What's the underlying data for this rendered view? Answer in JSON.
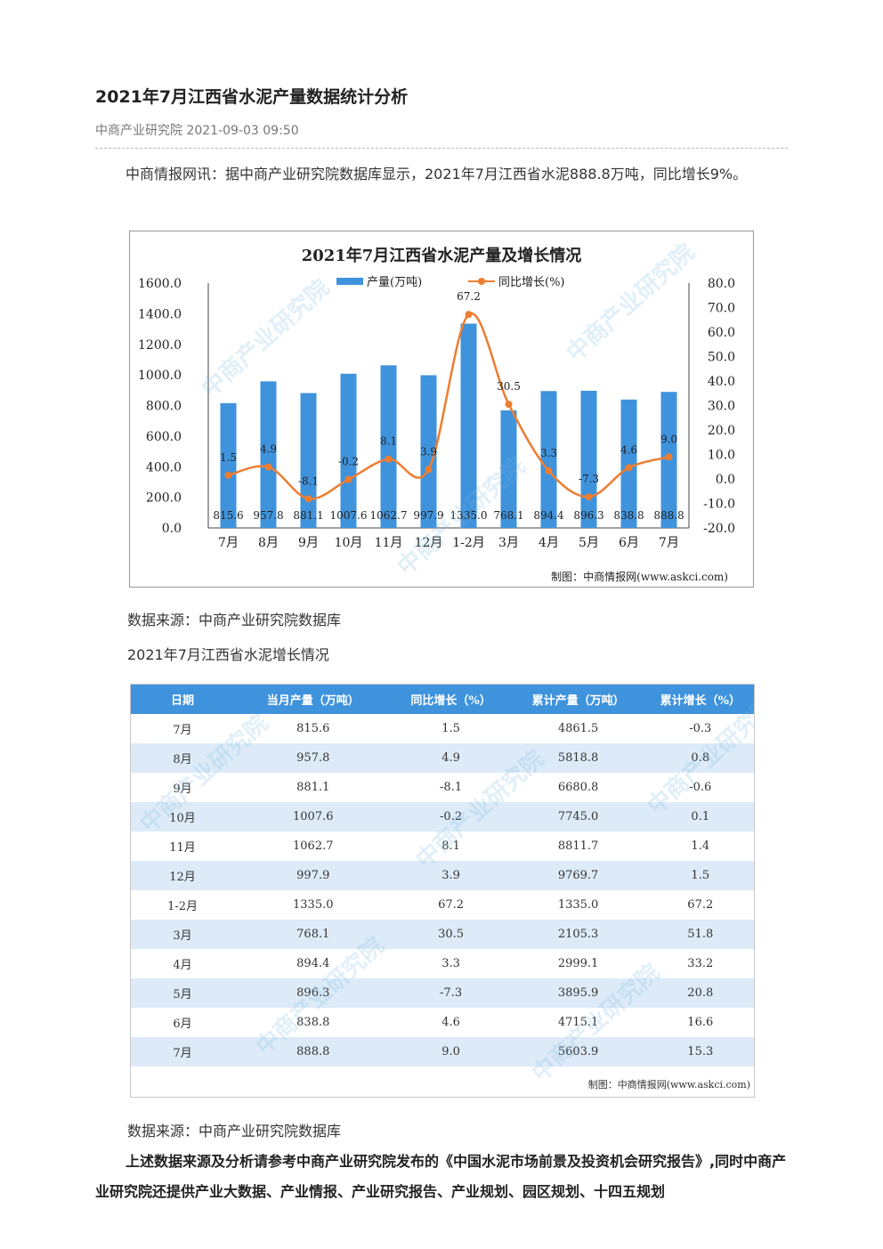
{
  "article": {
    "title": "2021年7月江西省水泥产量数据统计分析",
    "source_date": "中商产业研究院 2021-09-03 09:50",
    "intro": "中商情报网讯：据中商产业研究院数据库显示，2021年7月江西省水泥888.8万吨，同比增长9%。",
    "caption_source_1": "数据来源：中商产业研究院数据库",
    "table_title": "2021年7月江西省水泥增长情况",
    "caption_source_2": "数据来源：中商产业研究院数据库",
    "closing": "上述数据来源及分析请参考中商产业研究院发布的《中国水泥市场前景及投资机会研究报告》,同时中商产业研究院还提供产业大数据、产业情报、产业研究报告、产业规划、园区规划、十四五规划"
  },
  "chart_data": {
    "type": "bar+line",
    "title": "2021年7月江西省水泥产量及增长情况",
    "categories": [
      "7月",
      "8月",
      "9月",
      "10月",
      "11月",
      "12月",
      "1-2月",
      "3月",
      "4月",
      "5月",
      "6月",
      "7月"
    ],
    "series": [
      {
        "name": "产量(万吨)",
        "type": "bar",
        "axis": "left",
        "color": "#3f93dd",
        "values": [
          815.6,
          957.8,
          881.1,
          1007.6,
          1062.7,
          997.9,
          1335.0,
          768.1,
          894.4,
          896.3,
          838.8,
          888.8
        ],
        "labels": [
          "815.6",
          "957.8",
          "881.1",
          "1007.6",
          "1062.7",
          "997.9",
          "1335.0",
          "768.1",
          "894.4",
          "896.3",
          "838.8",
          "888.8"
        ]
      },
      {
        "name": "同比增长(%)",
        "type": "line",
        "axis": "right",
        "color": "#ed7d31",
        "values": [
          1.5,
          4.9,
          -8.1,
          -0.2,
          8.1,
          3.9,
          67.2,
          30.5,
          3.3,
          -7.3,
          4.6,
          9.0
        ],
        "labels": [
          "1.5",
          "4.9",
          "-8.1",
          "-0.2",
          "8.1",
          "3.9",
          "67.2",
          "30.5",
          "3.3",
          "-7.3",
          "4.6",
          "9.0"
        ]
      }
    ],
    "y_left_ticks": [
      "1600.0",
      "1400.0",
      "1200.0",
      "1000.0",
      "800.0",
      "600.0",
      "400.0",
      "200.0",
      "0.0"
    ],
    "y_left_range": [
      0,
      1600
    ],
    "y_right_ticks": [
      "80.0",
      "70.0",
      "60.0",
      "50.0",
      "40.0",
      "30.0",
      "20.0",
      "10.0",
      "0.0",
      "-10.0",
      "-20.0"
    ],
    "y_right_range": [
      -20,
      80
    ],
    "legend_position": "top",
    "credit": "制图：中商情报网(www.askci.com)"
  },
  "table": {
    "headers": [
      "日期",
      "当月产量（万吨）",
      "同比增长（%）",
      "累计产量（万吨）",
      "累计增长（%）"
    ],
    "rows": [
      [
        "7月",
        "815.6",
        "1.5",
        "4861.5",
        "-0.3"
      ],
      [
        "8月",
        "957.8",
        "4.9",
        "5818.8",
        "0.8"
      ],
      [
        "9月",
        "881.1",
        "-8.1",
        "6680.8",
        "-0.6"
      ],
      [
        "10月",
        "1007.6",
        "-0.2",
        "7745.0",
        "0.1"
      ],
      [
        "11月",
        "1062.7",
        "8.1",
        "8811.7",
        "1.4"
      ],
      [
        "12月",
        "997.9",
        "3.9",
        "9769.7",
        "1.5"
      ],
      [
        "1-2月",
        "1335.0",
        "67.2",
        "1335.0",
        "67.2"
      ],
      [
        "3月",
        "768.1",
        "30.5",
        "2105.3",
        "51.8"
      ],
      [
        "4月",
        "894.4",
        "3.3",
        "2999.1",
        "33.2"
      ],
      [
        "5月",
        "896.3",
        "-7.3",
        "3895.9",
        "20.8"
      ],
      [
        "6月",
        "838.8",
        "4.6",
        "4715.1",
        "16.6"
      ],
      [
        "7月",
        "888.8",
        "9.0",
        "5603.9",
        "15.3"
      ]
    ],
    "credit": "制图：中商情报网(www.askci.com)"
  },
  "watermark": "中商产业研究院",
  "colors": {
    "bar": "#3f93dd",
    "line": "#ed7d31",
    "header_bg": "#3f93dd",
    "row_alt": "#ddebf8"
  }
}
